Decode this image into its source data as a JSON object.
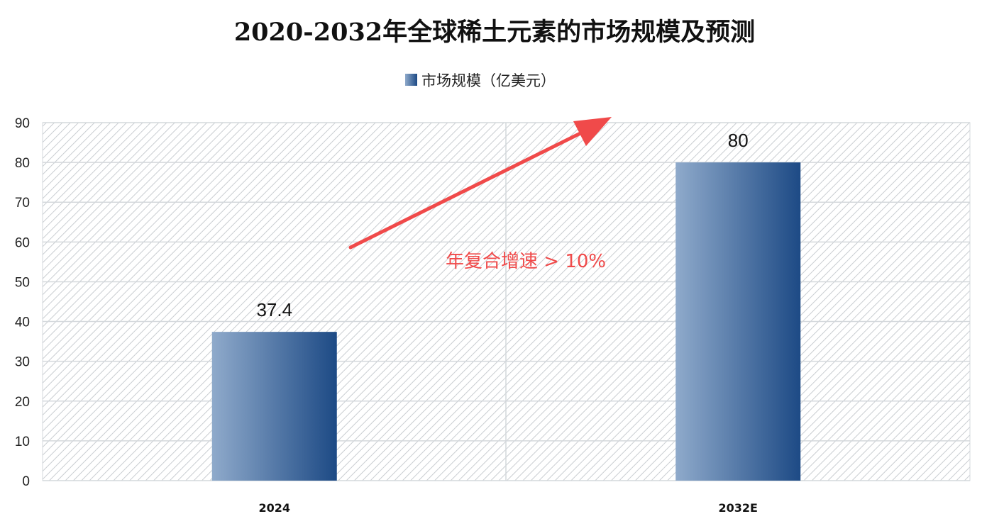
{
  "chart_data": {
    "type": "bar",
    "title": "2020-2032年全球稀土元素的市场规模及预测",
    "categories": [
      "2024",
      "2032E"
    ],
    "series": [
      {
        "name": "市场规模（亿美元）",
        "values": [
          37.4,
          80
        ]
      }
    ],
    "data_labels": [
      "37.4",
      "80"
    ],
    "ylim": [
      0,
      90
    ],
    "yticks": [
      0,
      10,
      20,
      30,
      40,
      50,
      60,
      70,
      80,
      90
    ],
    "xlabel": "",
    "ylabel": "",
    "grid": true,
    "legend_position": "top",
    "annotation": "年复合增速 > 10%",
    "colors": {
      "bar_light": "#8faacb",
      "bar_dark": "#1d4a85",
      "annotation": "#f04a4a",
      "grid": "#d4d8dc",
      "hatch": "#c9cdd1"
    }
  }
}
